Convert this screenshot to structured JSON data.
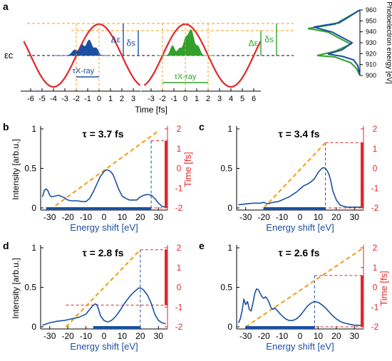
{
  "colors": {
    "blue": "#1c4fa3",
    "green": "#31a12c",
    "red": "#e3262b",
    "orange": "#f39c12",
    "black": "#000000",
    "axis": "#333333"
  },
  "panel_a": {
    "label": "a",
    "xlabel": "Time [fs]",
    "xticks_left": [
      -6,
      -5,
      -4,
      -3,
      -2,
      -1,
      0,
      1,
      2,
      3
    ],
    "xticks_right": [
      -3,
      -2,
      -1,
      0,
      1,
      2,
      3,
      4,
      5,
      6
    ],
    "ec_label": "εc",
    "delta_eps": "Δε",
    "delta_s": "δs",
    "tau_xray": "τX-ray",
    "spec_ylabel": "Photoelectron energy [eV]",
    "spec_yticks": [
      900,
      910,
      920,
      930,
      940,
      950,
      960
    ]
  },
  "chart_data": [
    {
      "type": "line",
      "panel": "b",
      "annotation": "τ = 3.7 fs",
      "xlabel": "Energy shift [eV]",
      "ylabel": "Intensity [arb.u.]",
      "y2label": "Time [fs]",
      "xlim": [
        -35,
        35
      ],
      "ylim": [
        0,
        1
      ],
      "y2lim": [
        -2,
        2
      ],
      "xticks": [
        -30,
        -20,
        -10,
        0,
        10,
        20,
        30
      ],
      "yticks": [
        0,
        0.5,
        1
      ],
      "y2ticks": [
        -2,
        -1,
        0,
        1,
        2
      ],
      "spectrum_x": [
        -34,
        -33,
        -32,
        -31,
        -30,
        -29,
        -27,
        -25,
        -22,
        -20,
        -18,
        -15,
        -12,
        -10,
        -8,
        -6,
        -4,
        -2,
        0,
        1,
        2,
        3,
        4,
        5,
        6,
        8,
        10,
        12,
        14,
        16,
        18,
        20,
        22,
        24,
        26,
        28,
        30,
        32,
        34
      ],
      "spectrum_y": [
        0.14,
        0.22,
        0.24,
        0.22,
        0.16,
        0.14,
        0.15,
        0.16,
        0.13,
        0.1,
        0.09,
        0.09,
        0.08,
        0.08,
        0.12,
        0.2,
        0.3,
        0.4,
        0.46,
        0.48,
        0.48,
        0.47,
        0.45,
        0.42,
        0.36,
        0.24,
        0.15,
        0.12,
        0.1,
        0.1,
        0.1,
        0.14,
        0.16,
        0.17,
        0.16,
        0.12,
        0.06,
        0.02,
        0.01
      ],
      "chirp_line": {
        "x": [
          -30,
          30
        ],
        "t": [
          -2.1,
          1.9
        ]
      },
      "bar_range": [
        -32,
        26
      ],
      "cutoff_x": 26,
      "red_bar_t": [
        -2,
        1.4
      ]
    },
    {
      "type": "line",
      "panel": "c",
      "annotation": "τ = 3.4 fs",
      "xlabel": "Energy shift [eV]",
      "ylabel": "",
      "y2label": "",
      "xlim": [
        -35,
        35
      ],
      "ylim": [
        0,
        1
      ],
      "y2lim": [
        -2,
        2
      ],
      "xticks": [
        -30,
        -20,
        -10,
        0,
        10,
        20,
        30
      ],
      "yticks": [
        0,
        0.5,
        1
      ],
      "y2ticks": [
        -2,
        -1,
        0,
        1,
        2
      ],
      "spectrum_x": [
        -34,
        -30,
        -26,
        -22,
        -20,
        -18,
        -15,
        -12,
        -10,
        -8,
        -6,
        -4,
        -2,
        0,
        2,
        4,
        6,
        8,
        10,
        12,
        13,
        14,
        15,
        16,
        17,
        18,
        20,
        22,
        24,
        26,
        28,
        30,
        32,
        34
      ],
      "spectrum_y": [
        0.04,
        0.05,
        0.06,
        0.06,
        0.07,
        0.05,
        0.07,
        0.08,
        0.1,
        0.12,
        0.14,
        0.17,
        0.2,
        0.24,
        0.28,
        0.3,
        0.33,
        0.37,
        0.45,
        0.5,
        0.51,
        0.5,
        0.47,
        0.42,
        0.34,
        0.22,
        0.1,
        0.04,
        0.02,
        0.01,
        0.01,
        0.01,
        0.01,
        0.01
      ],
      "chirp_line": {
        "x": [
          -20,
          14
        ],
        "t": [
          -2.0,
          1.3
        ]
      },
      "bar_range": [
        -20,
        14
      ],
      "cutoff_x": 14,
      "red_bar_t": [
        -2,
        1.3
      ]
    },
    {
      "type": "line",
      "panel": "d",
      "annotation": "τ = 2.8 fs",
      "xlabel": "Energy shift [eV]",
      "ylabel": "Intensity [arb.u.]",
      "y2label": "",
      "xlim": [
        -35,
        35
      ],
      "ylim": [
        0,
        1
      ],
      "y2lim": [
        -2,
        2
      ],
      "xticks": [
        -30,
        -20,
        -10,
        0,
        10,
        20,
        30
      ],
      "yticks": [
        0,
        0.5,
        1
      ],
      "y2ticks": [
        -2,
        -1,
        0,
        1,
        2
      ],
      "spectrum_x": [
        -34,
        -30,
        -26,
        -22,
        -18,
        -14,
        -10,
        -8,
        -6,
        -5,
        -4,
        -3,
        -2,
        0,
        2,
        4,
        6,
        8,
        10,
        12,
        14,
        16,
        18,
        19,
        20,
        21,
        22,
        24,
        26,
        28,
        30,
        32,
        34
      ],
      "spectrum_y": [
        0.02,
        0.05,
        0.07,
        0.08,
        0.1,
        0.12,
        0.16,
        0.22,
        0.27,
        0.29,
        0.28,
        0.22,
        0.14,
        0.08,
        0.06,
        0.08,
        0.12,
        0.18,
        0.25,
        0.32,
        0.38,
        0.43,
        0.47,
        0.49,
        0.49,
        0.48,
        0.46,
        0.4,
        0.3,
        0.16,
        0.08,
        0.05,
        0.04
      ],
      "chirp_line": {
        "x": [
          -21,
          20
        ],
        "t": [
          -2.0,
          1.9
        ]
      },
      "bar_range": [
        -6,
        20
      ],
      "cutoff_x": 20,
      "red_bar_t": [
        -0.9,
        1.9
      ]
    },
    {
      "type": "line",
      "panel": "e",
      "annotation": "τ = 2.6 fs",
      "xlabel": "Energy shift [eV]",
      "ylabel": "",
      "y2label": "Time [fs]",
      "xlim": [
        -35,
        35
      ],
      "ylim": [
        0,
        1
      ],
      "y2lim": [
        -2,
        2
      ],
      "xticks": [
        -30,
        -20,
        -10,
        0,
        10,
        20,
        30
      ],
      "yticks": [
        0,
        0.5,
        1
      ],
      "y2ticks": [
        -2,
        -1,
        0,
        1,
        2
      ],
      "spectrum_x": [
        -34,
        -33,
        -32,
        -31,
        -30,
        -29,
        -28,
        -27,
        -26,
        -25,
        -24,
        -23,
        -22,
        -21,
        -20,
        -19,
        -18,
        -17,
        -16,
        -15,
        -14,
        -12,
        -10,
        -8,
        -6,
        -4,
        -2,
        0,
        2,
        4,
        6,
        8,
        10,
        12,
        14,
        16,
        18,
        20,
        22,
        24,
        26,
        28,
        30,
        32,
        34
      ],
      "spectrum_y": [
        0.05,
        0.1,
        0.2,
        0.35,
        0.28,
        0.32,
        0.22,
        0.2,
        0.3,
        0.42,
        0.48,
        0.47,
        0.42,
        0.38,
        0.36,
        0.38,
        0.35,
        0.3,
        0.24,
        0.22,
        0.24,
        0.19,
        0.14,
        0.1,
        0.08,
        0.08,
        0.1,
        0.14,
        0.2,
        0.26,
        0.3,
        0.32,
        0.31,
        0.28,
        0.24,
        0.19,
        0.14,
        0.1,
        0.07,
        0.05,
        0.04,
        0.03,
        0.02,
        0.02,
        0.02
      ],
      "chirp_line": {
        "x": [
          -30,
          35
        ],
        "t": [
          -2.0,
          2.0
        ]
      },
      "bar_range": [
        -30,
        8
      ],
      "cutoff_x": 8,
      "red_bar_t": [
        -2,
        0.6
      ]
    }
  ]
}
